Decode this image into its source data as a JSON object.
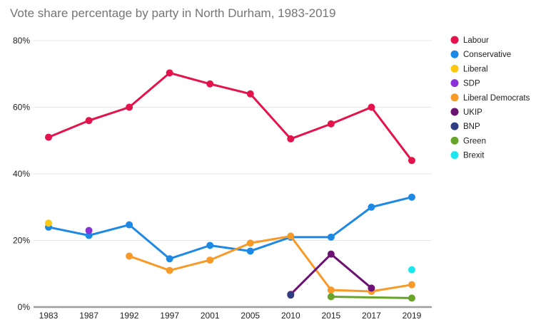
{
  "title": "Vote share percentage by party in North Durham, 1983-2019",
  "chart_data": {
    "type": "line",
    "title": "Vote share percentage by party in North Durham, 1983-2019",
    "xlabel": "",
    "ylabel": "",
    "categories": [
      "1983",
      "1987",
      "1992",
      "1997",
      "2001",
      "2005",
      "2010",
      "2015",
      "2017",
      "2019"
    ],
    "y_ticks": [
      "0%",
      "20%",
      "40%",
      "60%",
      "80%"
    ],
    "ylim": [
      0,
      80
    ],
    "grid": true,
    "legend_position": "right",
    "series": [
      {
        "name": "Labour",
        "color": "#E4134B",
        "values": [
          51,
          56,
          60,
          70.3,
          67,
          64,
          50.5,
          55,
          60,
          44
        ]
      },
      {
        "name": "Conservative",
        "color": "#1E88E5",
        "values": [
          24,
          21.5,
          24.7,
          14.5,
          18.5,
          16.8,
          21,
          21,
          30,
          33
        ]
      },
      {
        "name": "Liberal",
        "color": "#FBC912",
        "values": [
          25.2,
          null,
          null,
          null,
          null,
          null,
          null,
          null,
          null,
          null
        ]
      },
      {
        "name": "SDP",
        "color": "#8A30D9",
        "values": [
          null,
          23,
          null,
          null,
          null,
          null,
          null,
          null,
          null,
          null
        ]
      },
      {
        "name": "Liberal Democrats",
        "color": "#F79A28",
        "values": [
          null,
          null,
          15.3,
          11,
          14.1,
          19.2,
          21.3,
          5.1,
          4.7,
          6.7
        ]
      },
      {
        "name": "UKIP",
        "color": "#6C1272",
        "values": [
          null,
          null,
          null,
          null,
          null,
          null,
          3.8,
          15.9,
          5.7,
          null
        ]
      },
      {
        "name": "BNP",
        "color": "#2F3D82",
        "values": [
          null,
          null,
          null,
          null,
          null,
          null,
          3.6,
          null,
          null,
          null
        ]
      },
      {
        "name": "Green",
        "color": "#68A42A",
        "values": [
          null,
          null,
          null,
          null,
          null,
          null,
          null,
          3.1,
          null,
          2.7
        ]
      },
      {
        "name": "Brexit",
        "color": "#1DE7EE",
        "values": [
          null,
          null,
          null,
          null,
          null,
          null,
          null,
          null,
          null,
          11.2
        ]
      }
    ],
    "style": {
      "title_color": "#757575",
      "axis_label_color": "#222222",
      "gridline_color": "#e6e6e6",
      "baseline_color": "#9e9e9e",
      "legend_text_color": "#212121"
    }
  }
}
